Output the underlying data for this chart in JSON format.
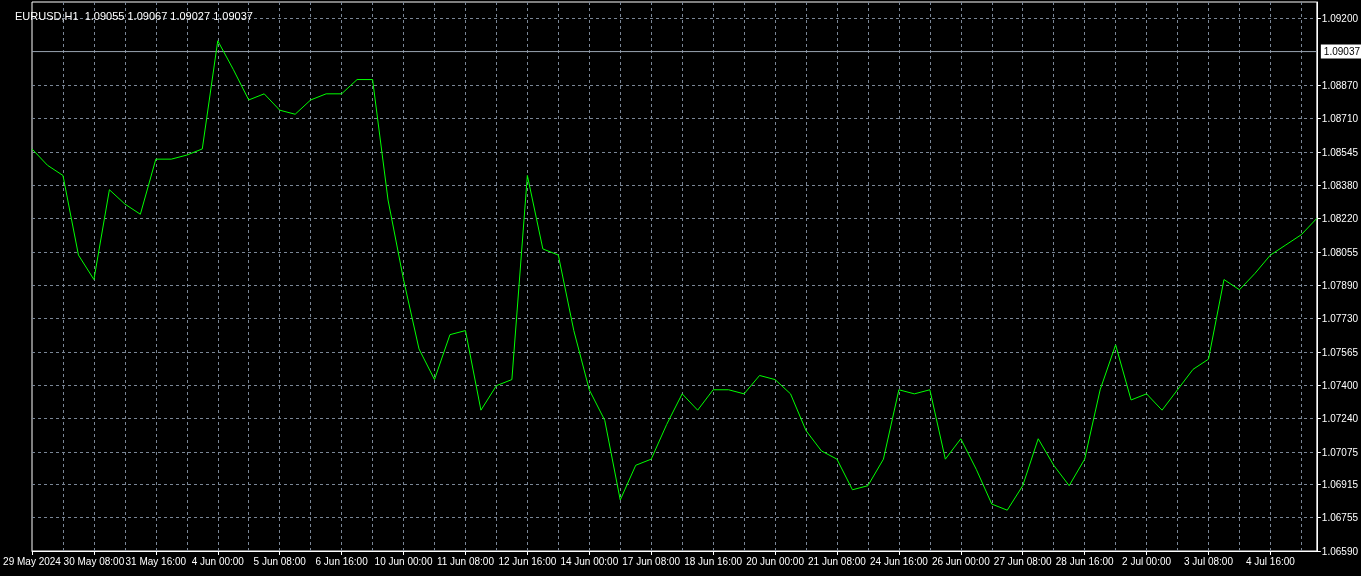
{
  "chart_data": {
    "type": "line",
    "title": "EURUSD,H1  1.09055 1.09067 1.09027 1.09037",
    "categories": [
      "29 May 2024",
      null,
      null,
      null,
      "30 May 08:00",
      null,
      null,
      null,
      "31 May 16:00",
      null,
      null,
      null,
      "4 Jun 00:00",
      null,
      null,
      null,
      "5 Jun 08:00",
      null,
      null,
      null,
      "6 Jun 16:00",
      null,
      null,
      null,
      "10 Jun 00:00",
      null,
      null,
      null,
      "11 Jun 08:00",
      null,
      null,
      null,
      "12 Jun 16:00",
      null,
      null,
      null,
      "14 Jun 00:00",
      null,
      null,
      null,
      "17 Jun 08:00",
      null,
      null,
      null,
      "18 Jun 16:00",
      null,
      null,
      null,
      "20 Jun 00:00",
      null,
      null,
      null,
      "21 Jun 08:00",
      null,
      null,
      null,
      "24 Jun 16:00",
      null,
      null,
      null,
      "26 Jun 00:00",
      null,
      null,
      null,
      "27 Jun 08:00",
      null,
      null,
      null,
      "28 Jun 16:00",
      null,
      null,
      null,
      "2 Jul 00:00",
      null,
      null,
      null,
      "3 Jul 08:00",
      null,
      null,
      null,
      "4 Jul 16:00",
      null,
      null,
      null
    ],
    "series": [
      {
        "color": "#00ff00",
        "values": [
          1.0856,
          1.0848,
          1.0843,
          1.0804,
          1.0792,
          1.0836,
          1.0829,
          1.0824,
          1.0851,
          1.0851,
          1.0853,
          1.0856,
          1.0909,
          1.0895,
          1.088,
          1.0883,
          1.0875,
          1.0873,
          1.088,
          1.0883,
          1.0883,
          1.089,
          1.089,
          1.0831,
          1.0792,
          1.0758,
          1.0743,
          1.0765,
          1.0767,
          1.0728,
          1.074,
          1.0743,
          1.0843,
          1.0807,
          1.0804,
          1.0767,
          1.0738,
          1.0723,
          1.0684,
          1.0701,
          1.0704,
          1.0721,
          1.0736,
          1.0728,
          1.0738,
          1.0738,
          1.0736,
          1.0745,
          1.0743,
          1.0736,
          1.0718,
          1.0708,
          1.0704,
          1.0689,
          1.0691,
          1.0704,
          1.0738,
          1.0736,
          1.0738,
          1.0704,
          1.0714,
          1.0699,
          1.0682,
          1.0679,
          1.0691,
          1.0714,
          1.0701,
          1.0691,
          1.0704,
          1.0738,
          1.076,
          1.0733,
          1.0736,
          1.0728,
          1.0738,
          1.0748,
          1.0753,
          1.0792,
          1.0787,
          1.0795,
          1.0804,
          1.0809,
          1.0814,
          1.0822
        ]
      }
    ],
    "ylim": [
      1.0659,
      1.0928
    ],
    "yticks": [
      {
        "value": 1.0659,
        "label": "1.06590"
      },
      {
        "value": 1.06755,
        "label": "1.06755"
      },
      {
        "value": 1.06915,
        "label": "1.06915"
      },
      {
        "value": 1.07075,
        "label": "1.07075"
      },
      {
        "value": 1.0724,
        "label": "1.07240"
      },
      {
        "value": 1.074,
        "label": "1.07400"
      },
      {
        "value": 1.07565,
        "label": "1.07565"
      },
      {
        "value": 1.0773,
        "label": "1.07730"
      },
      {
        "value": 1.0789,
        "label": "1.07890"
      },
      {
        "value": 1.08055,
        "label": "1.08055"
      },
      {
        "value": 1.0822,
        "label": "1.08220"
      },
      {
        "value": 1.0838,
        "label": "1.08380"
      },
      {
        "value": 1.08545,
        "label": "1.08545"
      },
      {
        "value": 1.0871,
        "label": "1.08710"
      },
      {
        "value": 1.0887,
        "label": "1.08870"
      },
      {
        "value": 1.092,
        "label": "1.09200"
      }
    ],
    "ref_lines": [
      {
        "axis": "y",
        "value": 1.09037,
        "label": "1.09037",
        "color": "#9aa4b1"
      }
    ],
    "grid": true,
    "marker": "none",
    "line_style": "solid"
  }
}
